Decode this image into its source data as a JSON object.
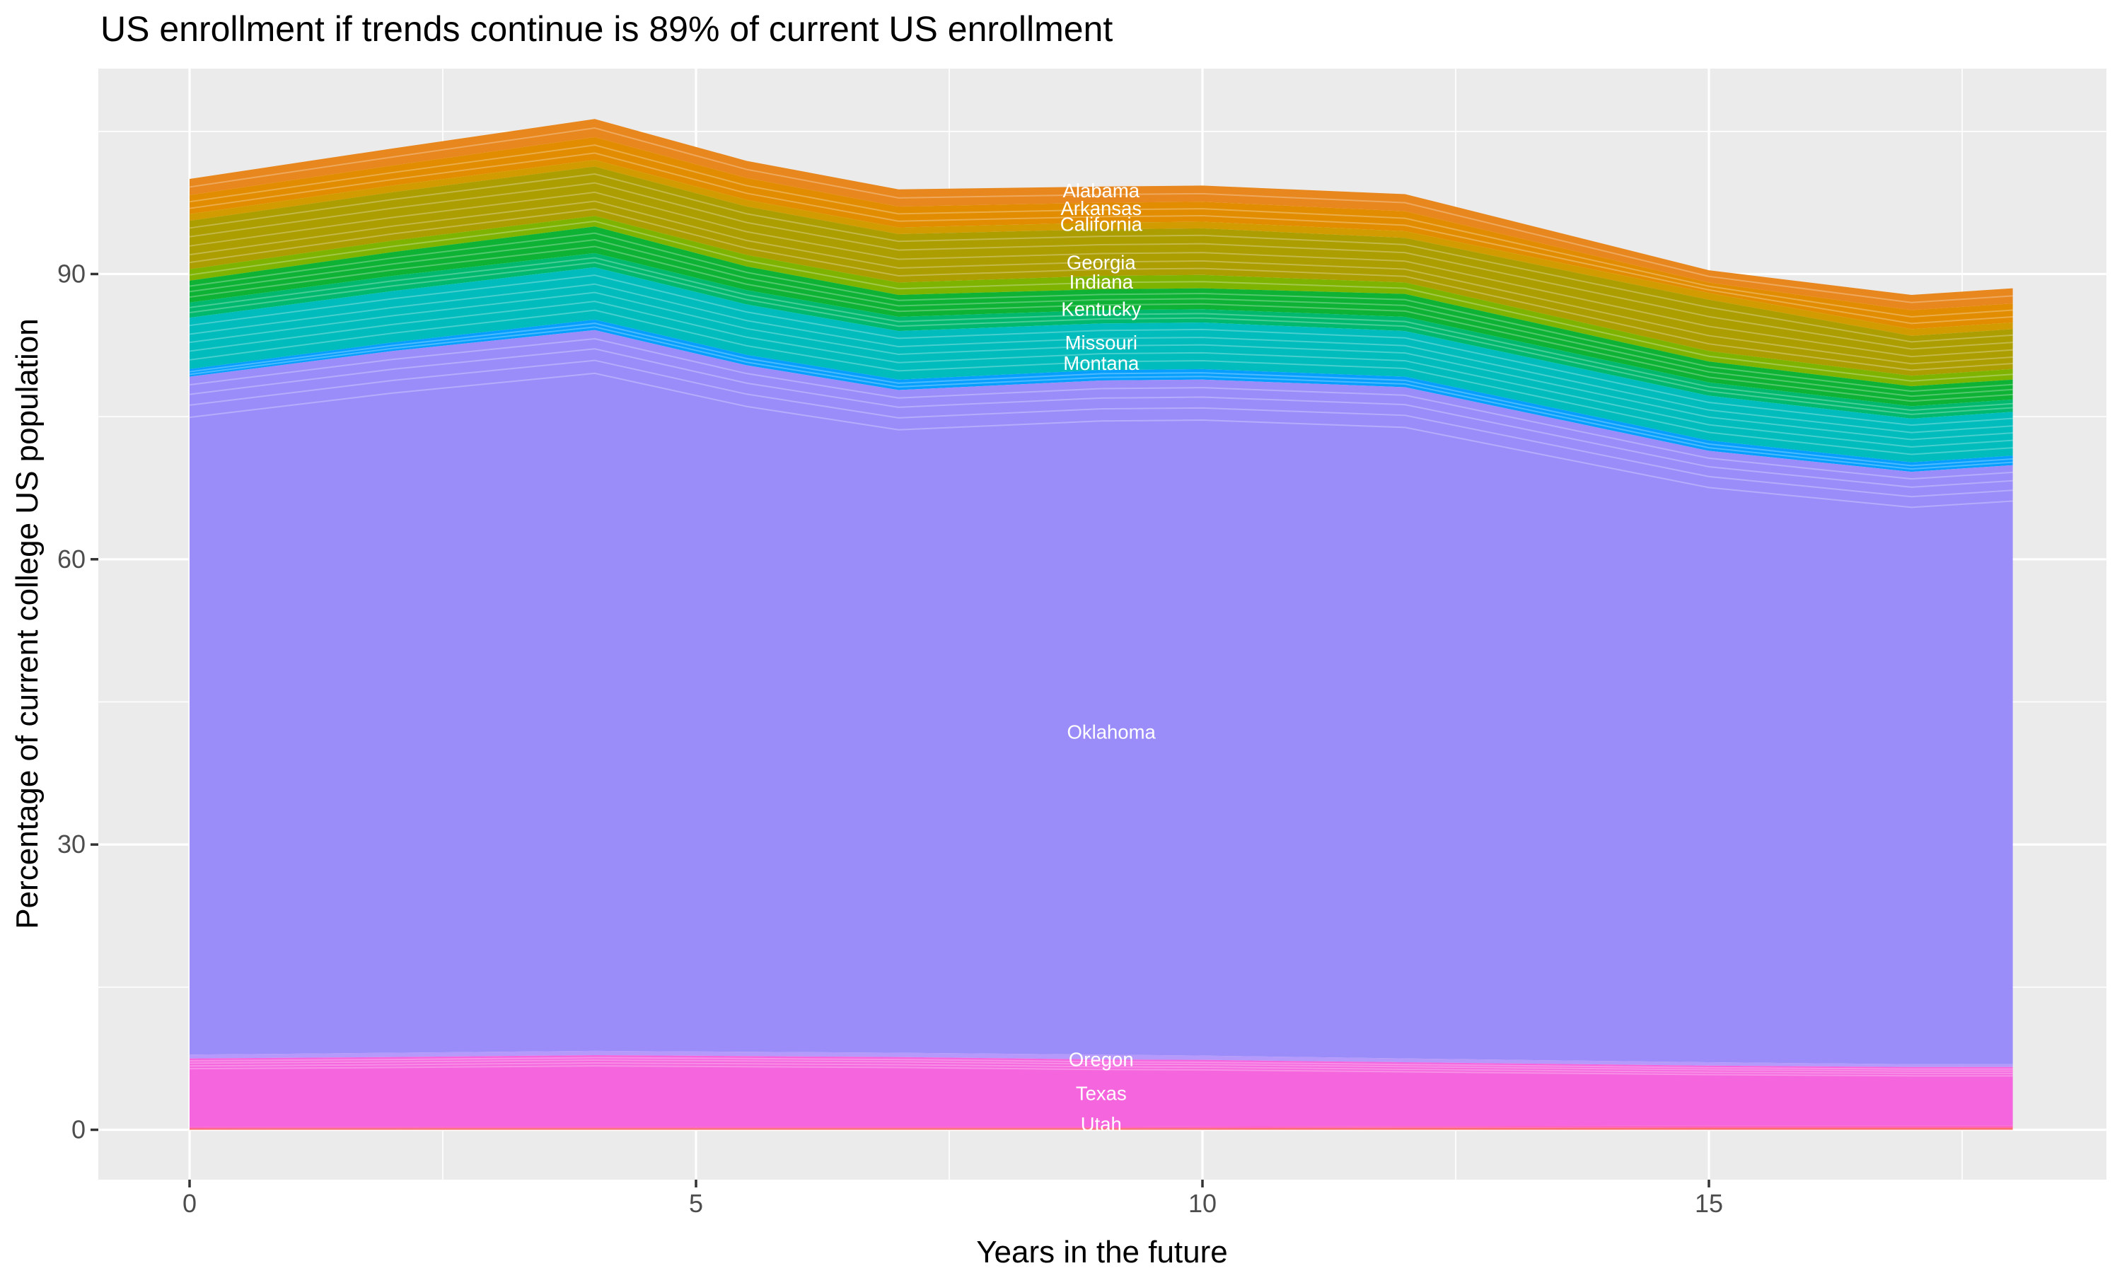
{
  "title": "US enrollment if trends continue is 89% of current US enrollment",
  "chart_data": {
    "type": "area",
    "stacked": true,
    "title": "US enrollment if trends continue is 89% of current US enrollment",
    "xlabel": "Years in the future",
    "ylabel": "Percentage of current college US population",
    "x_ticks": [
      0,
      5,
      10,
      15
    ],
    "y_ticks": [
      0,
      30,
      60,
      90
    ],
    "x_minor": [
      2.5,
      7.5,
      12.5,
      17.5
    ],
    "y_minor": [
      15,
      45,
      75,
      105
    ],
    "x_range": [
      0,
      18
    ],
    "y_max_total": 106.3,
    "end_total_pct_of_current": 89,
    "knots": [
      0,
      2,
      4,
      5.5,
      7,
      9,
      10,
      12,
      15,
      17,
      18
    ],
    "series": [
      {
        "name": "alabama",
        "label": "Alabama",
        "color": "#E8871E",
        "dividers": [
          0.5
        ],
        "top": [
          100.0,
          103.2,
          106.3,
          101.9,
          98.9,
          99.2,
          99.3,
          98.4,
          90.4,
          87.8,
          88.5
        ]
      },
      {
        "name": "arkansas",
        "label": "Arkansas",
        "color": "#E28C00",
        "dividers": [
          0.35,
          0.7
        ],
        "top": [
          98.3,
          101.4,
          104.4,
          100.1,
          97.1,
          97.5,
          97.6,
          96.6,
          89.1,
          86.2,
          86.9
        ]
      },
      {
        "name": "california",
        "label": "California",
        "color": "#D29B00",
        "dividers": [],
        "top": [
          96.3,
          99.3,
          102.0,
          97.8,
          94.9,
          95.4,
          95.5,
          94.5,
          88.0,
          84.2,
          84.9
        ]
      },
      {
        "name": "georgia",
        "label": "Georgia",
        "color": "#AC9D00",
        "dividers": [
          0.15,
          0.33,
          0.52,
          0.7,
          0.86
        ],
        "top": [
          95.6,
          98.6,
          101.3,
          97.1,
          94.2,
          94.7,
          94.8,
          93.8,
          87.3,
          83.5,
          84.2
        ]
      },
      {
        "name": "indiana",
        "label": "Indiana",
        "color": "#7EB300",
        "dividers": [
          0.5
        ],
        "top": [
          90.5,
          93.5,
          96.1,
          92.0,
          89.1,
          89.8,
          89.9,
          89.1,
          81.9,
          79.3,
          80.0
        ]
      },
      {
        "name": "kentucky",
        "label": "Kentucky",
        "color": "#0EB234",
        "dividers": [
          0.25,
          0.5,
          0.75
        ],
        "top": [
          89.3,
          92.3,
          95.0,
          90.8,
          87.8,
          88.4,
          88.5,
          87.9,
          80.8,
          78.2,
          78.9
        ]
      },
      {
        "name": "band-emerald",
        "label": null,
        "color": "#00B96F",
        "dividers": [
          0.33,
          0.66
        ],
        "top": [
          87.0,
          89.8,
          92.2,
          88.3,
          85.5,
          86.2,
          86.3,
          85.5,
          78.6,
          76.1,
          76.8
        ]
      },
      {
        "name": "missouri-montana-teal",
        "label": "Missouri / Montana",
        "color": "#00BCBC",
        "dividers": [
          0.15,
          0.32,
          0.48,
          0.65,
          0.82
        ],
        "top": [
          85.4,
          88.2,
          90.7,
          86.8,
          84.0,
          84.8,
          84.9,
          84.0,
          77.2,
          74.8,
          75.5
        ]
      },
      {
        "name": "band-azure",
        "label": null,
        "color": "#069FFF",
        "dividers": [
          0.35,
          0.7
        ],
        "top": [
          80.0,
          82.8,
          85.2,
          81.5,
          78.9,
          79.9,
          80.0,
          79.2,
          72.5,
          70.2,
          70.9
        ]
      },
      {
        "name": "oklahoma",
        "label": "Oklahoma",
        "color": "#9A8DFA",
        "dividers": [
          0.012,
          0.026,
          0.042,
          0.06
        ],
        "top": [
          79.2,
          81.9,
          84.1,
          80.4,
          77.8,
          78.8,
          78.9,
          78.1,
          71.4,
          69.2,
          69.9
        ]
      },
      {
        "name": "oregon",
        "label": "Oregon",
        "color": "#B59AFB",
        "dividers": [],
        "top": [
          7.9,
          8.1,
          8.3,
          8.2,
          8.1,
          7.9,
          7.8,
          7.5,
          7.1,
          6.9,
          6.9
        ]
      },
      {
        "name": "texas",
        "label": "Texas",
        "color": "#F565DE",
        "dividers": [
          0.035,
          0.07,
          0.11,
          0.15
        ],
        "top": [
          7.5,
          7.65,
          7.85,
          7.75,
          7.65,
          7.4,
          7.35,
          7.1,
          6.75,
          6.6,
          6.6
        ]
      },
      {
        "name": "utah",
        "label": "Utah",
        "color": "#FF63C5",
        "dividers": [],
        "top": [
          0.31,
          0.32,
          0.33,
          0.33,
          0.33,
          0.33,
          0.36,
          0.4,
          0.43,
          0.43,
          0.43
        ]
      },
      {
        "name": "band-red",
        "label": null,
        "color": "#FB6F70",
        "dividers": [],
        "top": [
          0.15,
          0.16,
          0.17,
          0.17,
          0.17,
          0.17,
          0.18,
          0.2,
          0.22,
          0.22,
          0.22
        ]
      }
    ],
    "state_labels": [
      {
        "text": "Alabama",
        "x": 9.0,
        "y": 98.74
      },
      {
        "text": "Arkansas",
        "x": 9.0,
        "y": 96.88
      },
      {
        "text": "California",
        "x": 9.0,
        "y": 95.22
      },
      {
        "text": "Georgia",
        "x": 9.0,
        "y": 91.18
      },
      {
        "text": "Indiana",
        "x": 9.0,
        "y": 89.14
      },
      {
        "text": "Kentucky",
        "x": 9.0,
        "y": 86.29
      },
      {
        "text": "Missouri",
        "x": 9.0,
        "y": 82.75
      },
      {
        "text": "Montana",
        "x": 9.0,
        "y": 80.59
      },
      {
        "text": "Oklahoma",
        "x": 9.1,
        "y": 41.8
      },
      {
        "text": "Oregon",
        "x": 9.0,
        "y": 7.38
      },
      {
        "text": "Texas",
        "x": 9.0,
        "y": 3.8
      },
      {
        "text": "Utah",
        "x": 9.0,
        "y": 0.56
      }
    ]
  },
  "colors": {
    "panel_background": "#EBEBEB",
    "gridline": "#FFFFFF",
    "axis_text": "#4D4D4D",
    "tick_mark": "#333333",
    "state_label_text": "#FFFFFF",
    "title_text": "#000000"
  }
}
